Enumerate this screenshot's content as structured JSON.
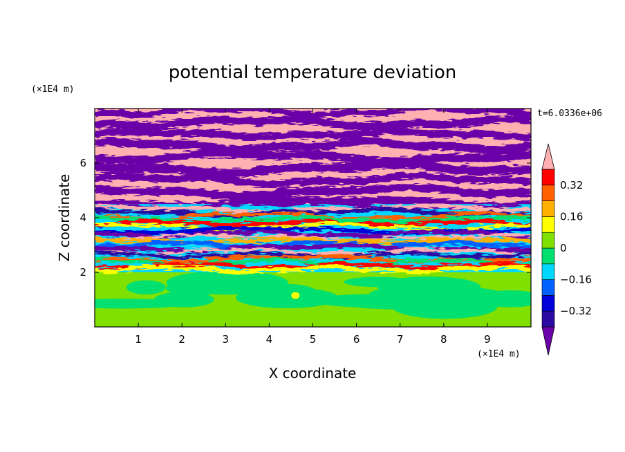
{
  "chart_data": {
    "type": "heatmap",
    "title": "potential temperature deviation",
    "xlabel": "X coordinate",
    "ylabel": "Z coordinate",
    "x_unit": "(×1E4 m)",
    "y_unit": "(×1E4 m)",
    "time_label": "t=6.0336e+06",
    "xlim": [
      0,
      10
    ],
    "ylim": [
      0,
      8
    ],
    "x_ticks": [
      "1",
      "2",
      "3",
      "4",
      "5",
      "6",
      "7",
      "8",
      "9"
    ],
    "y_ticks": [
      "2",
      "4",
      "6"
    ],
    "levels": [
      -0.4,
      -0.32,
      -0.24,
      -0.16,
      -0.08,
      0,
      0.08,
      0.16,
      0.24,
      0.32,
      0.4
    ],
    "colorbar_labels": [
      "0.32",
      "0.16",
      "0",
      "−0.16",
      "−0.32"
    ],
    "colorbar_extend": "both",
    "colors": [
      "#6a00a8",
      "#2a0aa0",
      "#0000d8",
      "#0060ff",
      "#00d8ff",
      "#00e070",
      "#80e000",
      "#ffff00",
      "#ffb000",
      "#ff6000",
      "#ff0000",
      "#ffb0b0"
    ],
    "grid": false,
    "regions": [
      {
        "z_range": [
          0,
          2
        ],
        "description_values": "mostly 0 to 0.08 with patches of -0.08 to 0 and a small 0.16 spot"
      },
      {
        "z_range": [
          2,
          4.5
        ],
        "description_values": "mixed bands from -0.4 to 0.4"
      },
      {
        "z_range": [
          4.5,
          8
        ],
        "description_values": "alternating layers below -0.4 and above 0.4"
      }
    ]
  }
}
